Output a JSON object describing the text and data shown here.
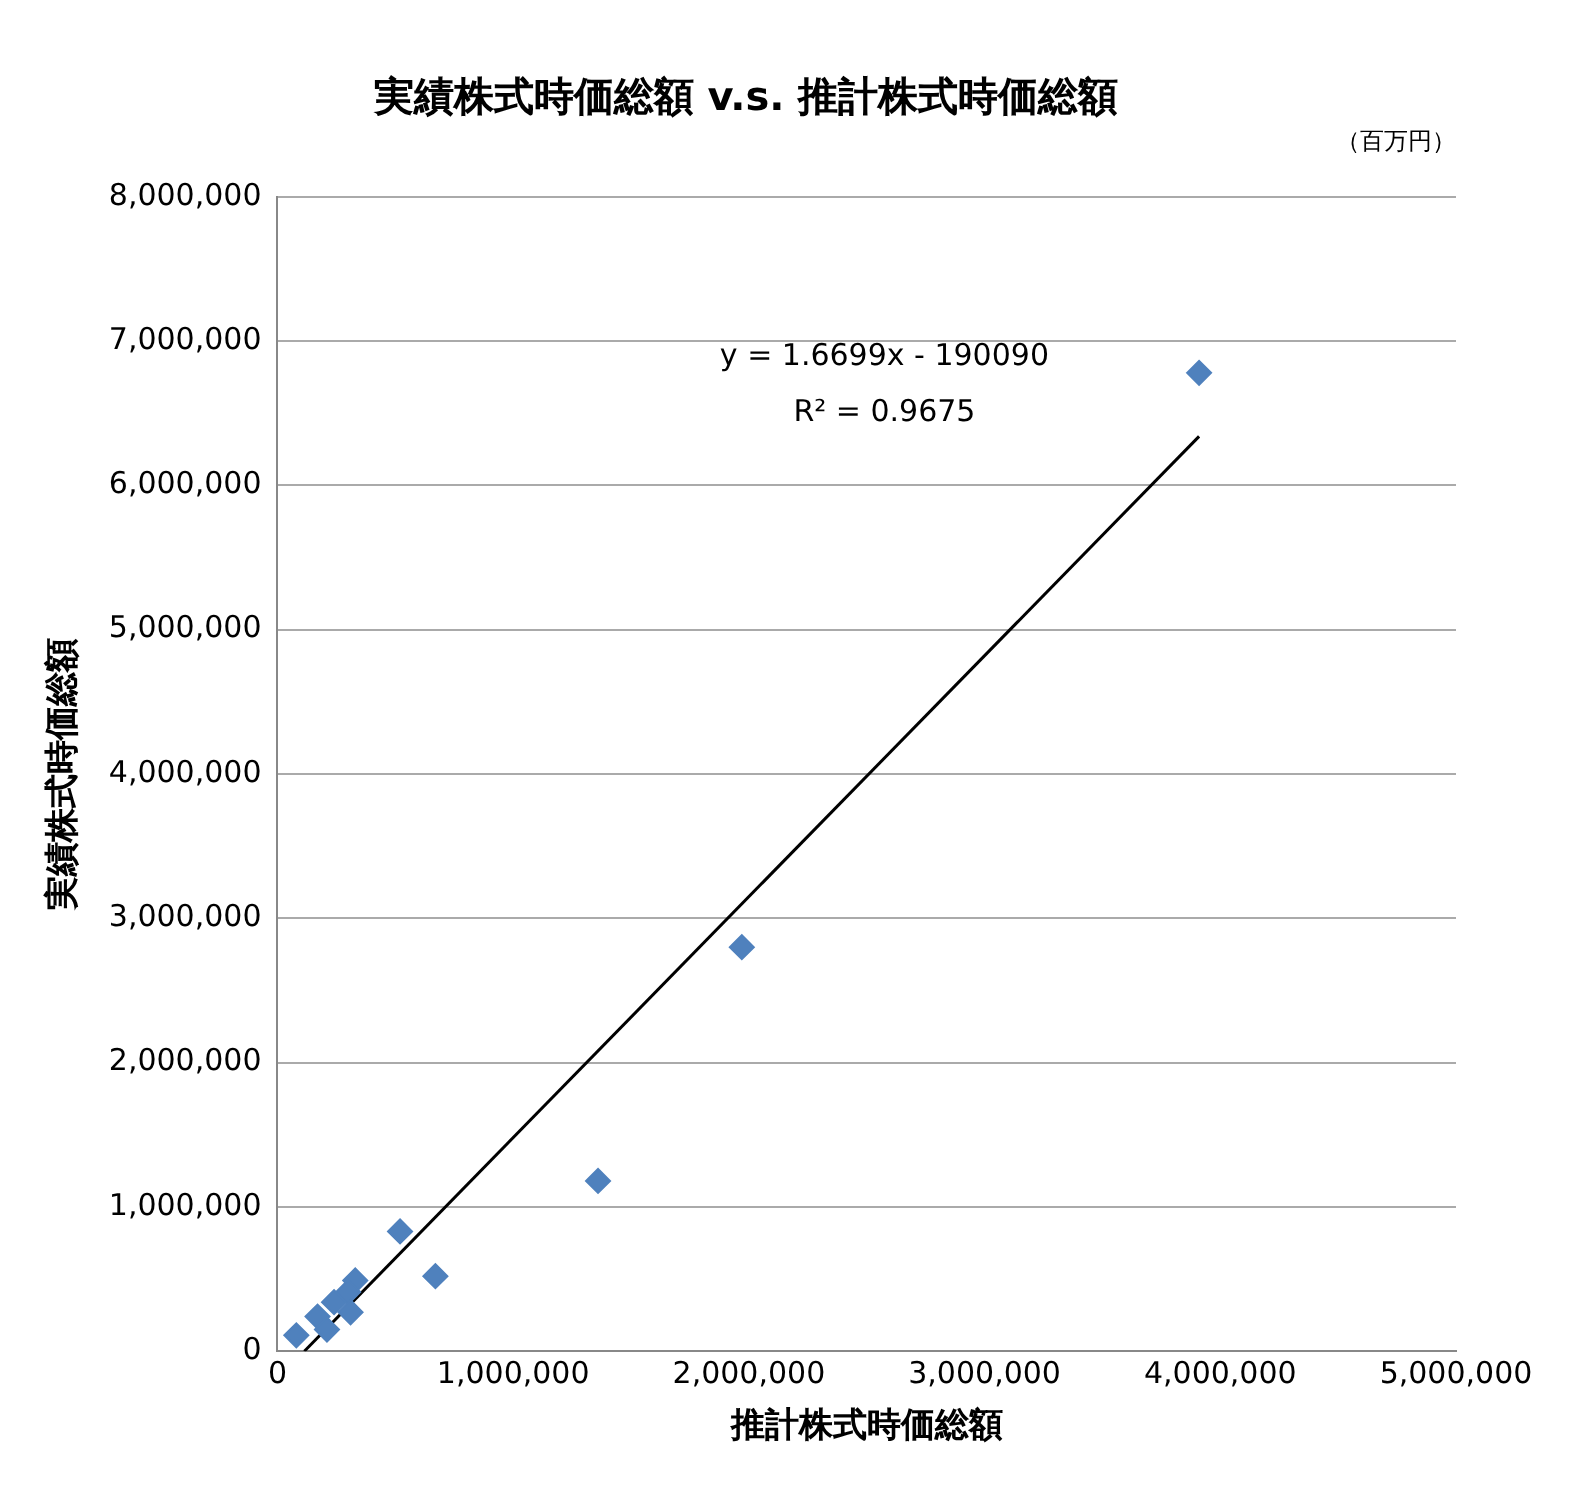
{
  "chart_data": {
    "type": "scatter",
    "title": "実績株式時価総額 v.s. 推計株式時価総額",
    "subtitle": "（百万円）",
    "xlabel": "推計株式時価総額",
    "ylabel": "実績株式時価総額",
    "xlim": [
      0,
      5000000
    ],
    "xticks": [
      {
        "value": 0,
        "label": "0"
      },
      {
        "value": 1000000,
        "label": "1,000,000"
      },
      {
        "value": 2000000,
        "label": "2,000,000"
      },
      {
        "value": 3000000,
        "label": "3,000,000"
      },
      {
        "value": 4000000,
        "label": "4,000,000"
      },
      {
        "value": 5000000,
        "label": "5,000,000"
      }
    ],
    "ylim": [
      0,
      8000000
    ],
    "yticks": [
      {
        "value": 0,
        "label": "0"
      },
      {
        "value": 1000000,
        "label": "1,000,000"
      },
      {
        "value": 2000000,
        "label": "2,000,000"
      },
      {
        "value": 3000000,
        "label": "3,000,000"
      },
      {
        "value": 4000000,
        "label": "4,000,000"
      },
      {
        "value": 5000000,
        "label": "5,000,000"
      },
      {
        "value": 6000000,
        "label": "6,000,000"
      },
      {
        "value": 7000000,
        "label": "7,000,000"
      },
      {
        "value": 8000000,
        "label": "8,000,000"
      }
    ],
    "grid": "y",
    "legend": false,
    "annotations": [
      "y = 1.6699x - 190090",
      "R² = 0.9675"
    ],
    "series": [
      {
        "marker": "diamond",
        "color": "#4f81bd",
        "x": [
          3910000,
          1970000,
          1360000,
          520000,
          670000,
          330000,
          300000,
          310000,
          240000,
          170000,
          210000,
          80000
        ],
        "values": [
          6780000,
          2800000,
          1180000,
          830000,
          520000,
          490000,
          410000,
          270000,
          340000,
          240000,
          150000,
          110000
        ]
      },
      {
        "type": "line",
        "color": "#000000",
        "x": [
          114000,
          3910000
        ],
        "values": [
          0,
          6340000
        ],
        "marker": "none"
      }
    ]
  }
}
